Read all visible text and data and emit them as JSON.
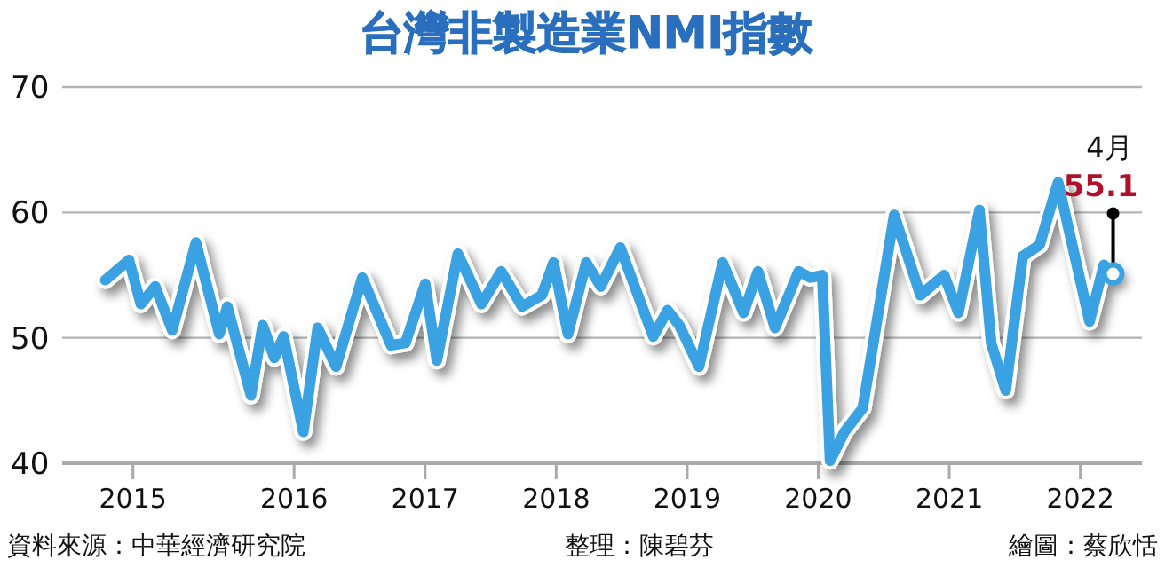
{
  "chart_data": {
    "type": "line",
    "title": "台灣非製造業NMI指數",
    "x": [
      2014.56,
      2014.74,
      2014.83,
      2014.94,
      2015.07,
      2015.25,
      2015.43,
      2015.49,
      2015.67,
      2015.76,
      2015.85,
      2015.92,
      2016.07,
      2016.18,
      2016.32,
      2016.52,
      2016.74,
      2016.85,
      2017.0,
      2017.09,
      2017.25,
      2017.43,
      2017.58,
      2017.74,
      2017.89,
      2017.98,
      2018.09,
      2018.23,
      2018.34,
      2018.49,
      2018.74,
      2018.85,
      2018.94,
      2019.09,
      2019.27,
      2019.43,
      2019.54,
      2019.67,
      2019.85,
      2019.94,
      2020.03,
      2020.09,
      2020.2,
      2020.34,
      2020.58,
      2020.78,
      2020.96,
      2021.07,
      2021.23,
      2021.32,
      2021.43,
      2021.56,
      2021.69,
      2021.83,
      2022.07,
      2022.18,
      2022.25
    ],
    "series": [
      {
        "color": "#3aa2e2",
        "values": [
          54.6,
          56.2,
          52.7,
          54.1,
          50.6,
          57.6,
          50.3,
          52.5,
          45.4,
          51.0,
          48.4,
          50.1,
          42.5,
          50.8,
          47.7,
          54.8,
          49.4,
          49.6,
          54.3,
          48.2,
          56.7,
          52.7,
          55.3,
          52.5,
          53.4,
          56.0,
          50.3,
          56.0,
          54.1,
          57.2,
          50.1,
          52.2,
          51.0,
          47.7,
          56.0,
          52.0,
          55.3,
          50.8,
          55.3,
          54.8,
          55.0,
          40.2,
          42.5,
          44.4,
          59.8,
          53.4,
          55.0,
          52.0,
          60.2,
          49.6,
          45.8,
          56.5,
          57.4,
          62.4,
          51.3,
          55.8,
          55.1
        ]
      }
    ],
    "xlim": [
      2014.23,
      2022.47
    ],
    "xticks": [
      {
        "value": 2014.77,
        "label": "2015"
      },
      2016,
      2017,
      2018,
      2019,
      2020,
      2021,
      2022
    ],
    "ylim": [
      40,
      70
    ],
    "yticks": [
      40,
      50,
      60,
      70
    ],
    "grid": "y",
    "annotations": [
      "4月",
      {
        "text": "55.1",
        "x": 2022.25,
        "y": 55.1
      },
      "資料來源：中華經濟研究院",
      "整理：陳碧芬",
      "繪圖：蔡欣恬"
    ]
  }
}
